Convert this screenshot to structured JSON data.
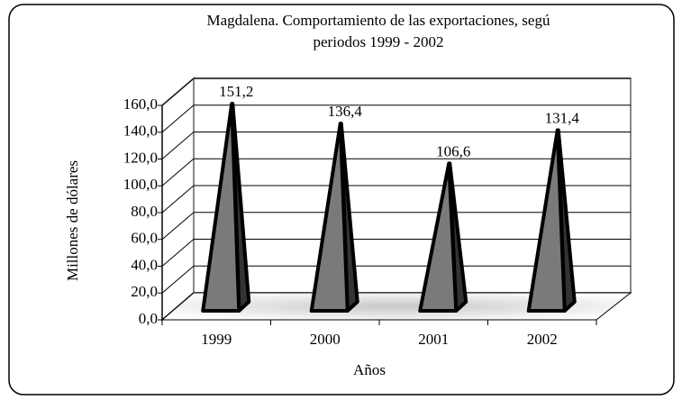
{
  "chart_data": {
    "type": "bar",
    "title": [
      "Magdalena. Comportamiento de las exportaciones, segú",
      "periodos 1999 - 2002"
    ],
    "x_label": "Años",
    "y_label": "Millones de dólares",
    "categories": [
      "1999",
      "2000",
      "2001",
      "2002"
    ],
    "values": [
      151.2,
      136.4,
      106.6,
      131.4
    ],
    "value_labels": [
      "151,2",
      "136,4",
      "106,6",
      "131,4"
    ],
    "color": "#7a7a7a",
    "ylim": [
      0,
      160
    ],
    "yticks": [
      {
        "value": 0,
        "label": "0,0"
      },
      {
        "value": 20,
        "label": "20,0"
      },
      {
        "value": 40,
        "label": "40,0"
      },
      {
        "value": 60,
        "label": "60,0"
      },
      {
        "value": 80,
        "label": "80,0"
      },
      {
        "value": 100,
        "label": "100,0"
      },
      {
        "value": 120,
        "label": "120,0"
      },
      {
        "value": 140,
        "label": "140,0"
      },
      {
        "value": 160,
        "label": "160,0"
      }
    ],
    "grid": true
  }
}
